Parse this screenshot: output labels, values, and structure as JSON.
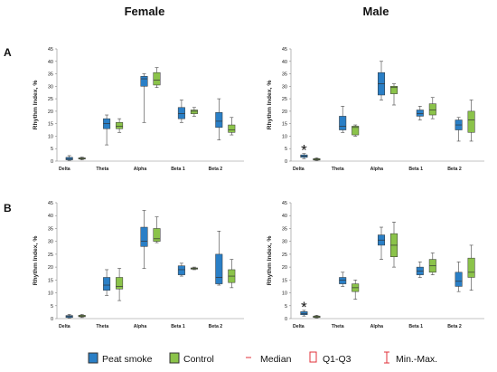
{
  "headers": {
    "female": "Female",
    "male": "Male"
  },
  "row_labels": {
    "a": "A",
    "b": "B"
  },
  "colors": {
    "peat": "#2a7fc6",
    "control": "#8bc34a",
    "stroke": "#333333",
    "median": "#e0303a"
  },
  "legend": {
    "peat": "Peat smoke",
    "control": "Control",
    "median": "Median",
    "iqr": "Q1-Q3",
    "range": "Min.-Max."
  },
  "chart_data": [
    {
      "id": "A-female",
      "type": "boxplot",
      "ylabel": "Rhythm Index, %",
      "ylim": [
        0,
        45
      ],
      "yticks": [
        0,
        5,
        10,
        15,
        20,
        25,
        30,
        35,
        40,
        45
      ],
      "categories": [
        "Delta",
        "Theta",
        "Alpha",
        "Beta 1",
        "Beta 2"
      ],
      "series": [
        {
          "name": "Peat smoke",
          "boxes": [
            {
              "min": 0.3,
              "q1": 0.5,
              "median": 1.0,
              "q3": 1.5,
              "max": 2.2
            },
            {
              "min": 6.5,
              "q1": 13.0,
              "median": 15.0,
              "q3": 17.0,
              "max": 18.5
            },
            {
              "min": 15.5,
              "q1": 30.0,
              "median": 33.0,
              "q3": 34.0,
              "max": 35.0
            },
            {
              "min": 15.5,
              "q1": 17.0,
              "median": 19.0,
              "q3": 21.5,
              "max": 24.5
            },
            {
              "min": 8.5,
              "q1": 13.5,
              "median": 16.0,
              "q3": 19.5,
              "max": 25.0
            }
          ]
        },
        {
          "name": "Control",
          "boxes": [
            {
              "min": 0.5,
              "q1": 0.8,
              "median": 1.1,
              "q3": 1.3,
              "max": 1.6
            },
            {
              "min": 11.5,
              "q1": 13.0,
              "median": 14.0,
              "q3": 15.5,
              "max": 17.0
            },
            {
              "min": 29.5,
              "q1": 30.5,
              "median": 32.5,
              "q3": 35.5,
              "max": 37.5
            },
            {
              "min": 18.0,
              "q1": 19.0,
              "median": 20.0,
              "q3": 20.5,
              "max": 21.5
            },
            {
              "min": 10.5,
              "q1": 11.5,
              "median": 12.5,
              "q3": 14.5,
              "max": 17.5
            }
          ]
        }
      ]
    },
    {
      "id": "A-male",
      "type": "boxplot",
      "ylabel": "Rhythm Index, %",
      "ylim": [
        0,
        45
      ],
      "yticks": [
        0,
        5,
        10,
        15,
        20,
        25,
        30,
        35,
        40,
        45
      ],
      "categories": [
        "Delta",
        "Theta",
        "Alpha",
        "Beta 1",
        "Beta 2"
      ],
      "annotations": [
        {
          "category": "Delta",
          "text": "*",
          "y": 3.5
        }
      ],
      "series": [
        {
          "name": "Peat smoke",
          "boxes": [
            {
              "min": 1.0,
              "q1": 1.5,
              "median": 2.0,
              "q3": 2.5,
              "max": 3.0
            },
            {
              "min": 11.5,
              "q1": 12.5,
              "median": 14.0,
              "q3": 18.0,
              "max": 22.0
            },
            {
              "min": 24.5,
              "q1": 26.5,
              "median": 31.0,
              "q3": 35.5,
              "max": 40.0
            },
            {
              "min": 16.5,
              "q1": 18.0,
              "median": 19.0,
              "q3": 20.5,
              "max": 22.0
            },
            {
              "min": 8.0,
              "q1": 12.5,
              "median": 14.5,
              "q3": 16.5,
              "max": 17.5
            }
          ]
        },
        {
          "name": "Control",
          "boxes": [
            {
              "min": 0.2,
              "q1": 0.4,
              "median": 0.7,
              "q3": 1.0,
              "max": 1.3
            },
            {
              "min": 10.0,
              "q1": 10.5,
              "median": 13.5,
              "q3": 14.0,
              "max": 14.5
            },
            {
              "min": 22.5,
              "q1": 27.0,
              "median": 29.5,
              "q3": 30.0,
              "max": 31.0
            },
            {
              "min": 17.0,
              "q1": 18.5,
              "median": 20.5,
              "q3": 23.0,
              "max": 25.5
            },
            {
              "min": 8.0,
              "q1": 11.5,
              "median": 16.5,
              "q3": 20.0,
              "max": 24.5
            }
          ]
        }
      ]
    },
    {
      "id": "B-female",
      "type": "boxplot",
      "ylabel": "Rhythm Index, %",
      "ylim": [
        0,
        45
      ],
      "yticks": [
        0,
        5,
        10,
        15,
        20,
        25,
        30,
        35,
        40,
        45
      ],
      "categories": [
        "Delta",
        "Theta",
        "Alpha",
        "Beta 1",
        "Beta 2"
      ],
      "series": [
        {
          "name": "Peat smoke",
          "boxes": [
            {
              "min": 0.2,
              "q1": 0.4,
              "median": 0.8,
              "q3": 1.2,
              "max": 1.6
            },
            {
              "min": 9.0,
              "q1": 11.0,
              "median": 13.0,
              "q3": 16.0,
              "max": 19.0
            },
            {
              "min": 19.5,
              "q1": 28.0,
              "median": 30.0,
              "q3": 35.5,
              "max": 42.0
            },
            {
              "min": 16.5,
              "q1": 17.0,
              "median": 19.0,
              "q3": 20.5,
              "max": 21.5
            },
            {
              "min": 13.0,
              "q1": 13.5,
              "median": 16.0,
              "q3": 25.0,
              "max": 34.0
            }
          ]
        },
        {
          "name": "Control",
          "boxes": [
            {
              "min": 0.4,
              "q1": 0.7,
              "median": 1.0,
              "q3": 1.3,
              "max": 1.6
            },
            {
              "min": 7.0,
              "q1": 11.5,
              "median": 12.5,
              "q3": 16.0,
              "max": 19.5
            },
            {
              "min": 29.5,
              "q1": 30.0,
              "median": 31.0,
              "q3": 35.0,
              "max": 39.5
            },
            {
              "min": 19.0,
              "q1": 19.2,
              "median": 19.5,
              "q3": 19.7,
              "max": 20.0
            },
            {
              "min": 12.0,
              "q1": 14.0,
              "median": 16.5,
              "q3": 19.0,
              "max": 23.0
            }
          ]
        }
      ]
    },
    {
      "id": "B-male",
      "type": "boxplot",
      "ylabel": "Rhythm Index, %",
      "ylim": [
        0,
        45
      ],
      "yticks": [
        0,
        5,
        10,
        15,
        20,
        25,
        30,
        35,
        40,
        45
      ],
      "categories": [
        "Delta",
        "Theta",
        "Alpha",
        "Beta 1",
        "Beta 2"
      ],
      "annotations": [
        {
          "category": "Delta",
          "text": "*",
          "y": 3.5
        }
      ],
      "series": [
        {
          "name": "Peat smoke",
          "boxes": [
            {
              "min": 1.0,
              "q1": 1.5,
              "median": 2.0,
              "q3": 2.7,
              "max": 3.2
            },
            {
              "min": 12.5,
              "q1": 13.5,
              "median": 15.0,
              "q3": 16.0,
              "max": 18.0
            },
            {
              "min": 23.0,
              "q1": 28.5,
              "median": 30.5,
              "q3": 32.5,
              "max": 35.5
            },
            {
              "min": 16.0,
              "q1": 17.0,
              "median": 18.5,
              "q3": 20.0,
              "max": 22.0
            },
            {
              "min": 10.5,
              "q1": 12.5,
              "median": 14.5,
              "q3": 18.0,
              "max": 22.0
            }
          ]
        },
        {
          "name": "Control",
          "boxes": [
            {
              "min": 0.2,
              "q1": 0.4,
              "median": 0.7,
              "q3": 1.0,
              "max": 1.3
            },
            {
              "min": 7.5,
              "q1": 10.5,
              "median": 12.0,
              "q3": 13.5,
              "max": 15.0
            },
            {
              "min": 20.0,
              "q1": 24.0,
              "median": 28.5,
              "q3": 33.0,
              "max": 37.5
            },
            {
              "min": 17.0,
              "q1": 18.0,
              "median": 20.5,
              "q3": 23.0,
              "max": 25.5
            },
            {
              "min": 11.0,
              "q1": 16.0,
              "median": 18.0,
              "q3": 23.5,
              "max": 28.5
            }
          ]
        }
      ]
    }
  ]
}
